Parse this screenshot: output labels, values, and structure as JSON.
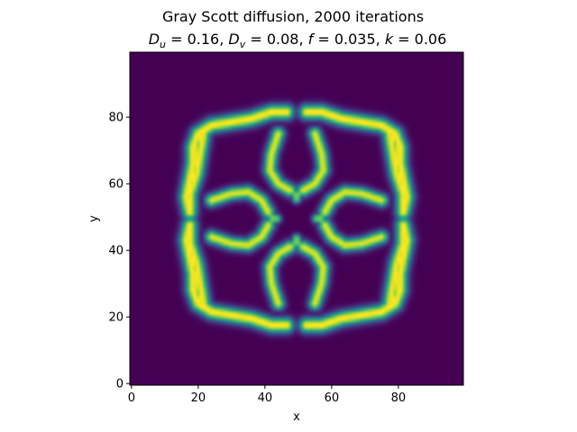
{
  "chart_data": {
    "type": "heatmap",
    "title": "Gray Scott diffusion, 2000 iterations",
    "subtitle": "D_u = 0.16, D_v = 0.08, f = 0.035, k = 0.06",
    "subtitle_parts": {
      "du_sym": "D",
      "du_sub": "u",
      "du_val": " = 0.16, ",
      "dv_sym": "D",
      "dv_sub": "v",
      "dv_val": " = 0.08, ",
      "f_sym": "f",
      "f_val": " = 0.035, ",
      "k_sym": "k",
      "k_val": " = 0.06"
    },
    "xlabel": "x",
    "ylabel": "y",
    "grid_size": [
      100,
      100
    ],
    "xlim": [
      -0.5,
      99.5
    ],
    "ylim": [
      99.5,
      -0.5
    ],
    "xticks": [
      0,
      20,
      40,
      60,
      80
    ],
    "xtick_labels": [
      "0",
      "20",
      "40",
      "60",
      "80"
    ],
    "yticks": [
      0,
      20,
      40,
      60,
      80
    ],
    "ytick_labels": [
      "0",
      "20",
      "40",
      "60",
      "80"
    ],
    "grid": false,
    "colormap": "viridis",
    "value_range": [
      0,
      1
    ],
    "pattern": "four-fold symmetric ring pattern centered near (49.5, 49.5)"
  }
}
